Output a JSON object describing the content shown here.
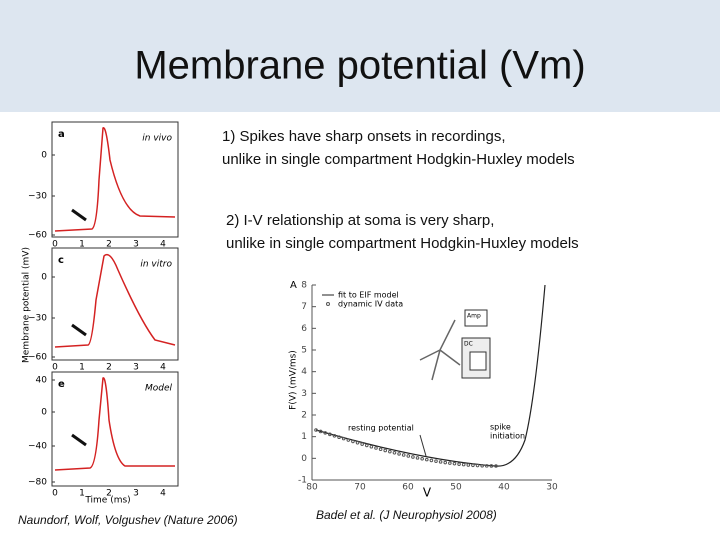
{
  "header": {
    "title": "Membrane potential (Vm)"
  },
  "points": [
    {
      "lines": [
        "1) Spikes have sharp onsets in recordings,",
        "unlike in single compartment Hodgkin-Huxley models"
      ]
    },
    {
      "lines": [
        "2) I-V relationship at soma is very sharp,",
        "unlike in single compartment Hodgkin-Huxley models"
      ]
    }
  ],
  "figure_left": {
    "ylabel": "Membrane potential (mV)",
    "xlabel": "Time (ms)",
    "panels": [
      {
        "label": "a",
        "note": "in vivo",
        "yticks": [
          "0",
          "−30",
          "−60"
        ],
        "xticks": [
          "0",
          "1",
          "2",
          "3",
          "4"
        ]
      },
      {
        "label": "c",
        "note": "in vitro",
        "yticks": [
          "0",
          "−30",
          "−60"
        ],
        "xticks": [
          "0",
          "1",
          "2",
          "3",
          "4"
        ]
      },
      {
        "label": "e",
        "note": "Model",
        "yticks": [
          "40",
          "0",
          "−40",
          "−80"
        ],
        "xticks": [
          "0",
          "1",
          "2",
          "3",
          "4"
        ]
      }
    ]
  },
  "figure_right": {
    "label": "A",
    "ylabel": "F(V) (mV/ms)",
    "yticks": [
      "8",
      "7",
      "6",
      "5",
      "4",
      "3",
      "2",
      "1",
      "0",
      "-1"
    ],
    "xticks": [
      "80",
      "70",
      "60",
      "50",
      "40",
      "30"
    ],
    "legend": [
      "fit to EIF model",
      "dynamic IV data"
    ],
    "inset": [
      "Amp",
      "DC"
    ],
    "annotations": {
      "resting": "resting potential",
      "spike": [
        "spike",
        "initiation"
      ]
    },
    "axis_symbol": "V"
  },
  "captions": [
    "Naundorf, Wolf, Volgushev (Nature 2006)",
    "Badel et al. (J Neurophysiol 2008)"
  ]
}
